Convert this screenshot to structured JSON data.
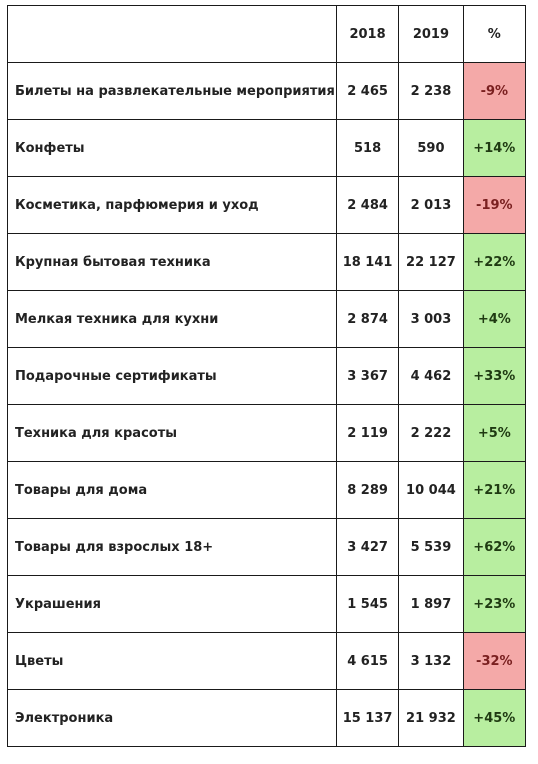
{
  "header": {
    "category": "",
    "col_2018": "2018",
    "col_2019": "2019",
    "col_pct": "%"
  },
  "rows": [
    {
      "name": "Билеты на развлекательные мероприятия",
      "y2018": "2 465",
      "y2019": "2 238",
      "pct": "-9%",
      "trend": "negative"
    },
    {
      "name": "Конфеты",
      "y2018": "518",
      "y2019": "590",
      "pct": "+14%",
      "trend": "positive"
    },
    {
      "name": "Косметика, парфюмерия и уход",
      "y2018": "2 484",
      "y2019": "2 013",
      "pct": "-19%",
      "trend": "negative"
    },
    {
      "name": "Крупная бытовая техника",
      "y2018": "18 141",
      "y2019": "22 127",
      "pct": "+22%",
      "trend": "positive"
    },
    {
      "name": "Мелкая техника для кухни",
      "y2018": "2 874",
      "y2019": "3 003",
      "pct": "+4%",
      "trend": "positive"
    },
    {
      "name": "Подарочные сертификаты",
      "y2018": "3 367",
      "y2019": "4 462",
      "pct": "+33%",
      "trend": "positive"
    },
    {
      "name": "Техника для красоты",
      "y2018": "2 119",
      "y2019": "2 222",
      "pct": "+5%",
      "trend": "positive"
    },
    {
      "name": "Товары для дома",
      "y2018": "8 289",
      "y2019": "10 044",
      "pct": "+21%",
      "trend": "positive"
    },
    {
      "name": "Товары для взрослых 18+",
      "y2018": "3 427",
      "y2019": "5 539",
      "pct": "+62%",
      "trend": "positive"
    },
    {
      "name": "Украшения",
      "y2018": "1 545",
      "y2019": "1 897",
      "pct": "+23%",
      "trend": "positive"
    },
    {
      "name": "Цветы",
      "y2018": "4 615",
      "y2019": "3 132",
      "pct": "-32%",
      "trend": "negative"
    },
    {
      "name": "Электроника",
      "y2018": "15 137",
      "y2019": "21 932",
      "pct": "+45%",
      "trend": "positive"
    }
  ],
  "colors": {
    "negative": "#f4a9a8",
    "positive": "#b8eea0"
  }
}
